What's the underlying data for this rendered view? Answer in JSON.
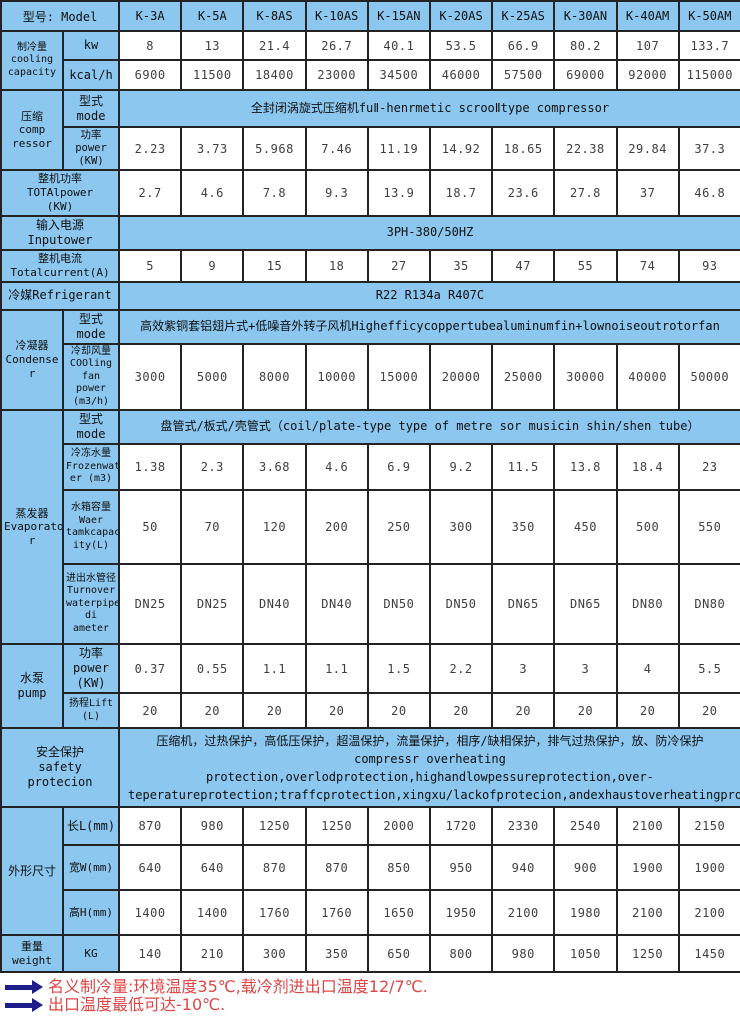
{
  "palette": {
    "header_bg": "#8cc7f0",
    "border": "#232323",
    "text": "#3f3f3f",
    "note_red": "#e04545",
    "arrow_navy": "#1d1d8c"
  },
  "table": {
    "model_header": "型号: Model",
    "models": [
      "K-3A",
      "K-5A",
      "K-8AS",
      "K-10AS",
      "K-15AN",
      "K-20AS",
      "K-25AS",
      "K-30AN",
      "K-40AM",
      "K-50AM"
    ],
    "rows": [
      {
        "key": "cooling-kw",
        "labels": [
          {
            "text": "制冷量\ncooling\ncapacity",
            "rowspan": 2
          },
          {
            "text": "kw"
          }
        ],
        "values": [
          "8",
          "13",
          "21.4",
          "26.7",
          "40.1",
          "53.5",
          "66.9",
          "80.2",
          "107",
          "133.7"
        ]
      },
      {
        "key": "cooling-kcal",
        "labels": [
          {
            "text": "kcal/h"
          }
        ],
        "values": [
          "6900",
          "11500",
          "18400",
          "23000",
          "34500",
          "46000",
          "57500",
          "69000",
          "92000",
          "115000"
        ]
      },
      {
        "key": "compressor-mode",
        "labels": [
          {
            "text": "压缩\ncomp\nressor",
            "rowspan": 2
          },
          {
            "text": "型式mode"
          }
        ],
        "span_value": "全封闭涡旋式压缩机fuⅡ-henrmetic scrooⅡtype compressor"
      },
      {
        "key": "compressor-power",
        "labels": [
          {
            "text": "功率\npower\n(KW)"
          }
        ],
        "values": [
          "2.23",
          "3.73",
          "5.968",
          "7.46",
          "11.19",
          "14.92",
          "18.65",
          "22.38",
          "29.84",
          "37.3"
        ]
      },
      {
        "key": "total-power",
        "labels": [
          {
            "text": "整机功率\nTOTAlpower\n(KW)",
            "colspan": 2
          }
        ],
        "values": [
          "2.7",
          "4.6",
          "7.8",
          "9.3",
          "13.9",
          "18.7",
          "23.6",
          "27.8",
          "37",
          "46.8"
        ]
      },
      {
        "key": "input-power",
        "labels": [
          {
            "text": "输入电源Inputower",
            "colspan": 2
          }
        ],
        "span_value": "3PH-380/50HZ"
      },
      {
        "key": "total-current",
        "labels": [
          {
            "text": "整机电流\nTotalcurrent(A)",
            "colspan": 2
          }
        ],
        "values": [
          "5",
          "9",
          "15",
          "18",
          "27",
          "35",
          "47",
          "55",
          "74",
          "93"
        ]
      },
      {
        "key": "refrigerant",
        "labels": [
          {
            "text": "冷媒Refrigerant",
            "colspan": 2
          }
        ],
        "span_value": "R22 R134a R407C"
      },
      {
        "key": "condenser-mode",
        "labels": [
          {
            "text": "冷凝器\nCondense\nr",
            "rowspan": 2
          },
          {
            "text": "型式mode"
          }
        ],
        "span_value": "高效紫铜套铝翅片式+低噪音外转子风机Highefficycoppertubealuminumfin+lownoiseoutrotorfan"
      },
      {
        "key": "condenser-fan",
        "labels": [
          {
            "text": "冷却风量\nCOOling\nfan power\n(m3/h)"
          }
        ],
        "values": [
          "3000",
          "5000",
          "8000",
          "10000",
          "15000",
          "20000",
          "25000",
          "30000",
          "40000",
          "50000"
        ]
      },
      {
        "key": "evaporator-mode",
        "labels": [
          {
            "text": "蒸发器\nEvaporato\nr",
            "rowspan": 4
          },
          {
            "text": "型式mode"
          }
        ],
        "span_value": "盘管式/板式/壳管式（coil/plate-type type of metre sor musicin shin/shen tube）"
      },
      {
        "key": "frozen-water",
        "labels": [
          {
            "text": "冷冻水量\nFrozenwat\ner (m3)"
          }
        ],
        "values": [
          "1.38",
          "2.3",
          "3.68",
          "4.6",
          "6.9",
          "9.2",
          "11.5",
          "13.8",
          "18.4",
          "23"
        ]
      },
      {
        "key": "tank-capacity",
        "labels": [
          {
            "text": "水箱容量\nWaer\ntamkcapac\nity(L)"
          }
        ],
        "values": [
          "50",
          "70",
          "120",
          "200",
          "250",
          "300",
          "350",
          "450",
          "500",
          "550"
        ]
      },
      {
        "key": "pipe-diameter",
        "labels": [
          {
            "text": "进出水管径\nTurnover\nwaterpipe\ndi ameter"
          }
        ],
        "values": [
          "DN25",
          "DN25",
          "DN40",
          "DN40",
          "DN50",
          "DN50",
          "DN65",
          "DN65",
          "DN80",
          "DN80"
        ]
      },
      {
        "key": "pump-power",
        "labels": [
          {
            "text": "水泵\npump",
            "rowspan": 2
          },
          {
            "text": "功率power\n(KW)"
          }
        ],
        "values": [
          "0.37",
          "0.55",
          "1.1",
          "1.1",
          "1.5",
          "2.2",
          "3",
          "3",
          "4",
          "5.5"
        ]
      },
      {
        "key": "pump-lift",
        "labels": [
          {
            "text": "扬程Lift\n(L)"
          }
        ],
        "values": [
          "20",
          "20",
          "20",
          "20",
          "20",
          "20",
          "20",
          "20",
          "20",
          "20"
        ]
      },
      {
        "key": "safety",
        "labels": [
          {
            "text": "安全保护\nsafety protecion",
            "colspan": 2
          }
        ],
        "span_value": "压缩机，过热保护，高低压保护，超温保护，流量保护，相序/缺相保护，排气过热保护，放、防冷保护\ncompressr overheating protection,overlodprotection,highandlowpessureprotection,over-teperatureprotection;traffcprotection,xingxu/lackofprotecion,andexhaustoverheatingproteion,frostprotection"
      },
      {
        "key": "dim-length",
        "labels": [
          {
            "text": "外形尺寸",
            "rowspan": 3
          },
          {
            "text": "长L(mm)"
          }
        ],
        "values": [
          "870",
          "980",
          "1250",
          "1250",
          "2000",
          "1720",
          "2330",
          "2540",
          "2100",
          "2150"
        ]
      },
      {
        "key": "dim-width",
        "labels": [
          {
            "text": "宽W(mm)"
          }
        ],
        "values": [
          "640",
          "640",
          "870",
          "870",
          "850",
          "950",
          "940",
          "900",
          "1900",
          "1900"
        ]
      },
      {
        "key": "dim-height",
        "labels": [
          {
            "text": "高H(mm)"
          }
        ],
        "values": [
          "1400",
          "1400",
          "1760",
          "1760",
          "1650",
          "1950",
          "2100",
          "1980",
          "2100",
          "2100"
        ]
      },
      {
        "key": "weight",
        "labels": [
          {
            "text": "重量\nweight"
          },
          {
            "text": "KG"
          }
        ],
        "values": [
          "140",
          "210",
          "300",
          "350",
          "650",
          "800",
          "980",
          "1050",
          "1250",
          "1450"
        ]
      }
    ]
  },
  "notes": [
    "名义制冷量:环境温度35℃,载冷剂进出口温度12/7℃.",
    "出口温度最低可达-10℃."
  ]
}
